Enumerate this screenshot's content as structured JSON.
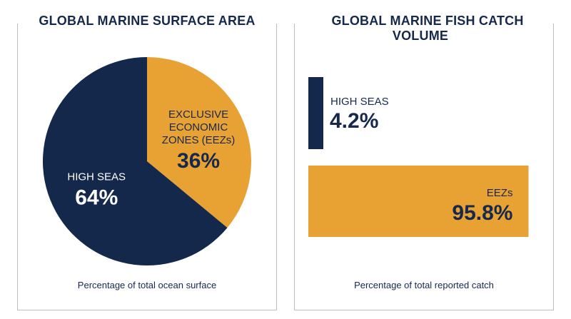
{
  "colors": {
    "navy": "#14284b",
    "gold": "#e8a234",
    "text_dark": "#16284b",
    "white": "#ffffff"
  },
  "left_panel": {
    "title": "GLOBAL MARINE SURFACE AREA",
    "caption": "Percentage of total ocean surface"
  },
  "right_panel": {
    "title": "GLOBAL MARINE FISH CATCH VOLUME",
    "caption": "Percentage of total reported catch"
  },
  "chart_data": [
    {
      "type": "pie",
      "title": "GLOBAL MARINE SURFACE AREA",
      "slices": [
        {
          "label_lines": [
            "EXCLUSIVE",
            "ECONOMIC",
            "ZONES (EEZs)"
          ],
          "value": 36,
          "display": "36%",
          "color": "#e8a234"
        },
        {
          "label_lines": [
            "HIGH SEAS"
          ],
          "value": 64,
          "display": "64%",
          "color": "#14284b"
        }
      ],
      "caption": "Percentage of total ocean surface"
    },
    {
      "type": "bar",
      "orientation": "horizontal",
      "title": "GLOBAL MARINE FISH CATCH VOLUME",
      "categories": [
        "HIGH SEAS",
        "EEZs"
      ],
      "values": [
        4.2,
        95.8
      ],
      "displays": [
        "4.2%",
        "95.8%"
      ],
      "colors": [
        "#14284b",
        "#e8a234"
      ],
      "xlim": [
        0,
        100
      ],
      "caption": "Percentage of total reported catch"
    }
  ]
}
